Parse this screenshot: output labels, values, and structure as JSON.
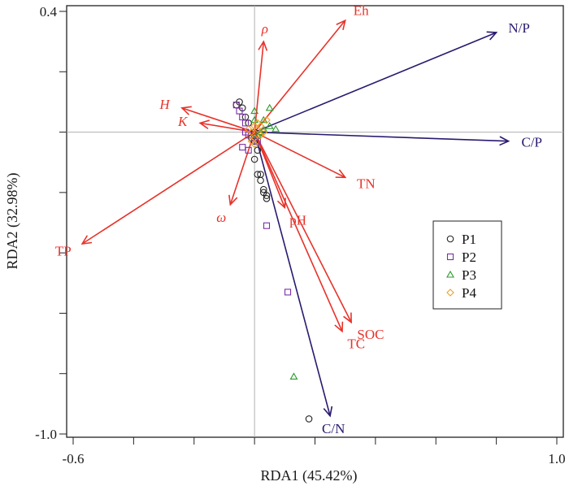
{
  "chart_data": {
    "type": "scatter",
    "xlabel": "RDA1 (45.42%)",
    "ylabel": "RDA2 (32.98%)",
    "xlim": [
      -0.6,
      1.0
    ],
    "ylim": [
      -1.0,
      0.4
    ],
    "x_ticks": [
      -0.6,
      -0.4,
      -0.2,
      0.0,
      0.2,
      0.4,
      0.6,
      0.8,
      1.0
    ],
    "y_ticks": [
      -1.0,
      -0.8,
      -0.6,
      -0.4,
      -0.2,
      0.0,
      0.2,
      0.4
    ],
    "x_tick_labels": [
      {
        "value": -0.6,
        "label": "-0.6"
      },
      {
        "value": 1.0,
        "label": "1.0"
      }
    ],
    "y_tick_labels": [
      {
        "value": 0.4,
        "label": "0.4"
      },
      {
        "value": -1.0,
        "label": "-1.0"
      }
    ],
    "reference_lines": {
      "x": 0.0,
      "y": 0.0,
      "color": "#b0b0b0"
    },
    "legend": {
      "placement": "right",
      "entries": [
        {
          "name": "P1",
          "marker": "circle",
          "color": "#222222"
        },
        {
          "name": "P2",
          "marker": "square",
          "color": "#7b2fa8"
        },
        {
          "name": "P3",
          "marker": "triangle",
          "color": "#2e9a2e"
        },
        {
          "name": "P4",
          "marker": "diamond",
          "color": "#f0a020"
        }
      ]
    },
    "vectors": [
      {
        "label": "N/P",
        "italic": false,
        "x": 0.8,
        "y": 0.33,
        "color": "#2a1a6e"
      },
      {
        "label": "C/P",
        "italic": false,
        "x": 0.84,
        "y": -0.03,
        "color": "#2a1a6e"
      },
      {
        "label": "C/N",
        "italic": false,
        "x": 0.25,
        "y": -0.94,
        "color": "#2a1a6e"
      },
      {
        "label": "Eh",
        "italic": false,
        "x": 0.3,
        "y": 0.37,
        "color": "#e8322a"
      },
      {
        "label": "ρ",
        "italic": true,
        "x": 0.03,
        "y": 0.3,
        "color": "#e8322a"
      },
      {
        "label": "H",
        "italic": true,
        "x": -0.24,
        "y": 0.08,
        "color": "#e8322a"
      },
      {
        "label": "K",
        "italic": true,
        "x": -0.18,
        "y": 0.03,
        "color": "#e8322a"
      },
      {
        "label": "TN",
        "italic": false,
        "x": 0.3,
        "y": -0.15,
        "color": "#e8322a"
      },
      {
        "label": "pH",
        "italic": false,
        "x": 0.1,
        "y": -0.25,
        "color": "#e8322a"
      },
      {
        "label": "ω",
        "italic": true,
        "x": -0.08,
        "y": -0.24,
        "color": "#e8322a"
      },
      {
        "label": "TP",
        "italic": false,
        "x": -0.57,
        "y": -0.37,
        "color": "#e8322a"
      },
      {
        "label": "SOC",
        "italic": false,
        "x": 0.32,
        "y": -0.63,
        "color": "#e8322a"
      },
      {
        "label": "TC",
        "italic": false,
        "x": 0.29,
        "y": -0.66,
        "color": "#e8322a"
      }
    ],
    "series": [
      {
        "name": "P1",
        "marker": "circle",
        "color": "#222222",
        "points": [
          [
            -0.05,
            0.1
          ],
          [
            -0.06,
            0.09
          ],
          [
            -0.04,
            0.08
          ],
          [
            -0.03,
            0.05
          ],
          [
            -0.02,
            0.03
          ],
          [
            0.0,
            0.0
          ],
          [
            0.01,
            -0.06
          ],
          [
            0.0,
            -0.09
          ],
          [
            0.01,
            -0.14
          ],
          [
            0.02,
            -0.14
          ],
          [
            0.02,
            -0.16
          ],
          [
            0.03,
            -0.19
          ],
          [
            0.03,
            -0.2
          ],
          [
            0.04,
            -0.22
          ],
          [
            0.04,
            -0.21
          ],
          [
            -0.01,
            -0.02
          ],
          [
            0.0,
            -0.03
          ],
          [
            0.18,
            -0.95
          ]
        ]
      },
      {
        "name": "P2",
        "marker": "square",
        "color": "#7b2fa8",
        "points": [
          [
            -0.06,
            0.09
          ],
          [
            -0.05,
            0.07
          ],
          [
            -0.04,
            0.05
          ],
          [
            -0.03,
            0.03
          ],
          [
            -0.03,
            0.0
          ],
          [
            -0.02,
            -0.01
          ],
          [
            -0.04,
            -0.05
          ],
          [
            -0.02,
            -0.06
          ],
          [
            0.0,
            -0.02
          ],
          [
            0.01,
            -0.03
          ],
          [
            0.04,
            -0.31
          ],
          [
            0.11,
            -0.53
          ]
        ]
      },
      {
        "name": "P3",
        "marker": "triangle",
        "color": "#2e9a2e",
        "points": [
          [
            0.0,
            0.07
          ],
          [
            0.05,
            0.08
          ],
          [
            0.05,
            0.02
          ],
          [
            0.07,
            0.01
          ],
          [
            0.03,
            0.04
          ],
          [
            0.02,
            0.0
          ],
          [
            0.03,
            0.01
          ],
          [
            0.0,
            0.04
          ],
          [
            0.01,
            -0.01
          ],
          [
            0.13,
            -0.81
          ]
        ]
      },
      {
        "name": "P4",
        "marker": "diamond",
        "color": "#f0a020",
        "points": [
          [
            0.0,
            0.02
          ],
          [
            0.01,
            0.01
          ],
          [
            -0.01,
            0.0
          ],
          [
            0.02,
            -0.01
          ],
          [
            0.0,
            -0.02
          ],
          [
            -0.02,
            0.01
          ],
          [
            0.03,
            0.0
          ],
          [
            0.01,
            0.03
          ],
          [
            -0.01,
            -0.03
          ],
          [
            0.02,
            0.02
          ],
          [
            0.04,
            0.04
          ],
          [
            0.0,
            -0.04
          ]
        ]
      }
    ]
  }
}
